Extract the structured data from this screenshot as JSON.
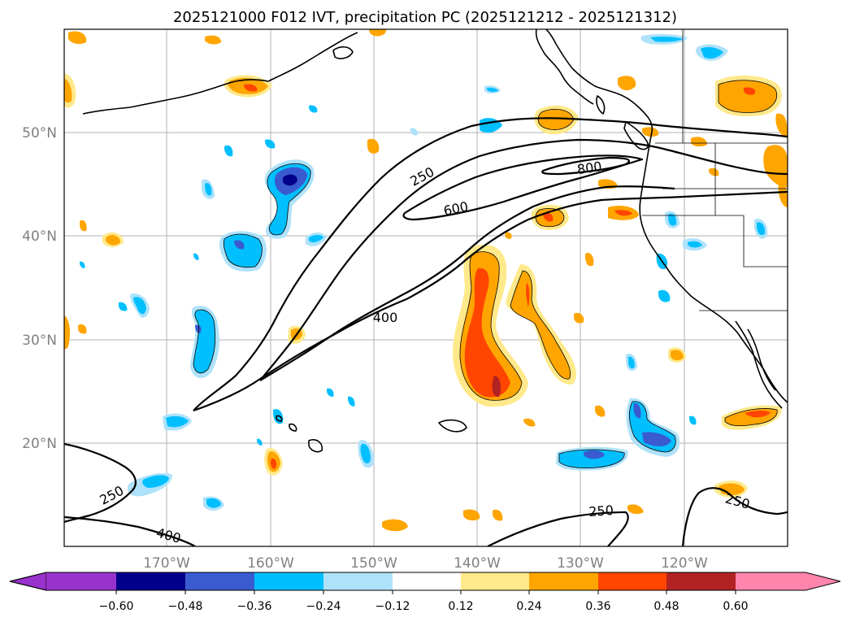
{
  "title": "2025121000 F012 IVT, precipitation PC (2025121212 - 2025121312)",
  "map": {
    "lon_labels": [
      "170°W",
      "160°W",
      "150°W",
      "140°W",
      "130°W",
      "120°W"
    ],
    "lat_labels": [
      "50°N",
      "40°N",
      "30°N",
      "20°N"
    ],
    "ivt_contour_labels": [
      "250",
      "600",
      "800",
      "400",
      "250",
      "400",
      "250",
      "250"
    ]
  },
  "colorbar": {
    "ticks": [
      "−0.60",
      "−0.48",
      "−0.36",
      "−0.24",
      "−0.12",
      "0.12",
      "0.24",
      "0.36",
      "0.48",
      "0.60"
    ],
    "colors": {
      "under": "#9932cc",
      "c1": "#00008b",
      "c2": "#3a5bd0",
      "c3": "#00bfff",
      "c4": "#aee2fa",
      "c5": "#ffffff",
      "c6": "#ffe98a",
      "c7": "#ffa500",
      "c8": "#ff4500",
      "c9": "#b22222",
      "over": "#ff85ad"
    }
  }
}
